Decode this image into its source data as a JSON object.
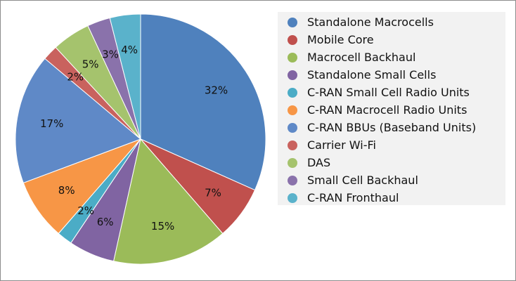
{
  "chart_data": {
    "type": "pie",
    "title": "",
    "legend_position": "right",
    "slices": [
      {
        "label": "Standalone Macrocells",
        "value": 32,
        "display": "32%",
        "color": "#4f81bd"
      },
      {
        "label": "Mobile Core",
        "value": 7,
        "display": "7%",
        "color": "#c0504d"
      },
      {
        "label": "Macrocell Backhaul",
        "value": 15,
        "display": "15%",
        "color": "#9bbb59"
      },
      {
        "label": "Standalone Small Cells",
        "value": 6,
        "display": "6%",
        "color": "#8064a2"
      },
      {
        "label": "C-RAN Small Cell Radio Units",
        "value": 2,
        "display": "2%",
        "color": "#4bacc6"
      },
      {
        "label": "C-RAN Macrocell Radio Units",
        "value": 8,
        "display": "8%",
        "color": "#f79646"
      },
      {
        "label": "C-RAN BBUs (Baseband Units)",
        "value": 17,
        "display": "17%",
        "color": "#5f89c7"
      },
      {
        "label": "Carrier Wi-Fi",
        "value": 2,
        "display": "2%",
        "color": "#c9625e"
      },
      {
        "label": "DAS",
        "value": 5,
        "display": "5%",
        "color": "#a5c36d"
      },
      {
        "label": "Small Cell Backhaul",
        "value": 3,
        "display": "3%",
        "color": "#8a72ab"
      },
      {
        "label": "C-RAN Fronthaul",
        "value": 4,
        "display": "4%",
        "color": "#5ab2cb"
      }
    ]
  }
}
